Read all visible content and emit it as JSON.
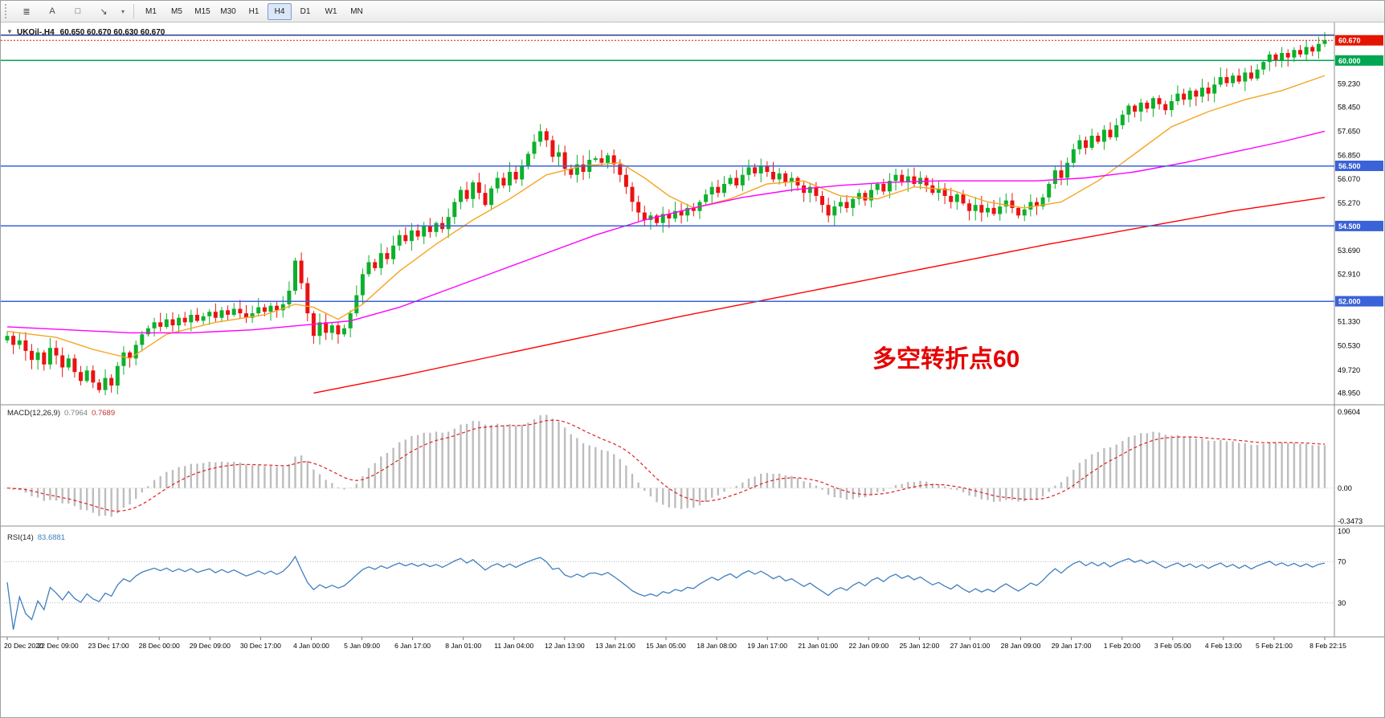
{
  "toolbar": {
    "icons": [
      {
        "name": "charts-list-icon",
        "glyph": "≣"
      },
      {
        "name": "text-label-tool-icon",
        "glyph": "A"
      },
      {
        "name": "shapes-tool-icon",
        "glyph": "□"
      },
      {
        "name": "arrow-tool-icon",
        "glyph": "↘"
      },
      {
        "name": "arrow-tool-caret-icon",
        "glyph": "▾"
      }
    ],
    "timeframes": [
      "M1",
      "M5",
      "M15",
      "M30",
      "H1",
      "H4",
      "D1",
      "W1",
      "MN"
    ],
    "active_timeframe": "H4"
  },
  "chart": {
    "title_symbol": "UKOil-,H4",
    "title_ohlc": "60.650 60.670 60.630 60.670"
  },
  "chart_data": {
    "type": "candlestick",
    "symbol": "UKOil-",
    "timeframe": "H4",
    "ohlc_display": {
      "open": "60.650",
      "high": "60.670",
      "low": "60.630",
      "close": "60.670"
    },
    "x_labels": [
      "20 Dec 2020",
      "22 Dec 09:00",
      "23 Dec 17:00",
      "28 Dec 00:00",
      "29 Dec 09:00",
      "30 Dec 17:00",
      "4 Jan 00:00",
      "5 Jan 09:00",
      "6 Jan 17:00",
      "8 Jan 01:00",
      "11 Jan 04:00",
      "12 Jan 13:00",
      "13 Jan 21:00",
      "15 Jan 05:00",
      "18 Jan 08:00",
      "19 Jan 17:00",
      "21 Jan 01:00",
      "22 Jan 09:00",
      "25 Jan 12:00",
      "27 Jan 01:00",
      "28 Jan 09:00",
      "29 Jan 17:00",
      "1 Feb 20:00",
      "3 Feb 05:00",
      "4 Feb 13:00",
      "5 Feb 21:00",
      "8 Feb 22:15"
    ],
    "closes": [
      50.85,
      50.55,
      50.7,
      50.35,
      50.05,
      50.3,
      49.9,
      50.45,
      50.2,
      49.8,
      50.1,
      49.65,
      49.35,
      49.7,
      49.3,
      49.05,
      49.45,
      49.2,
      49.85,
      50.3,
      50.1,
      50.55,
      50.9,
      51.1,
      51.3,
      51.15,
      51.4,
      51.2,
      51.45,
      51.3,
      51.55,
      51.35,
      51.5,
      51.65,
      51.45,
      51.7,
      51.55,
      51.75,
      51.6,
      51.45,
      51.6,
      51.8,
      51.65,
      51.85,
      51.7,
      51.9,
      52.35,
      53.35,
      52.6,
      51.6,
      50.85,
      51.3,
      50.95,
      51.2,
      50.9,
      51.1,
      51.6,
      52.2,
      52.9,
      53.3,
      53.1,
      53.6,
      53.4,
      53.85,
      54.2,
      54.0,
      54.35,
      54.15,
      54.5,
      54.3,
      54.6,
      54.4,
      54.8,
      55.3,
      55.7,
      55.4,
      55.95,
      55.6,
      55.2,
      55.75,
      56.1,
      55.85,
      56.3,
      56.05,
      56.5,
      56.9,
      57.3,
      57.65,
      57.35,
      56.8,
      56.95,
      56.4,
      56.2,
      56.55,
      56.3,
      56.7,
      56.75,
      56.6,
      56.85,
      56.55,
      56.2,
      55.8,
      55.3,
      54.95,
      54.7,
      54.85,
      54.6,
      54.9,
      54.75,
      55.0,
      54.85,
      55.1,
      55.0,
      55.3,
      55.55,
      55.8,
      55.6,
      55.9,
      56.1,
      55.85,
      56.2,
      56.45,
      56.25,
      56.5,
      56.3,
      56.05,
      56.25,
      55.95,
      56.1,
      55.85,
      55.6,
      55.8,
      55.5,
      55.2,
      54.85,
      55.15,
      55.3,
      55.1,
      55.4,
      55.6,
      55.35,
      55.7,
      55.9,
      55.65,
      56.0,
      56.2,
      55.95,
      56.15,
      55.9,
      56.1,
      55.85,
      55.6,
      55.75,
      55.5,
      55.3,
      55.55,
      55.25,
      55.0,
      55.2,
      54.95,
      55.1,
      54.9,
      55.15,
      55.35,
      55.1,
      54.85,
      55.05,
      55.3,
      55.15,
      55.45,
      55.9,
      56.35,
      56.1,
      56.6,
      57.05,
      57.35,
      57.1,
      57.5,
      57.3,
      57.7,
      57.45,
      57.85,
      58.2,
      58.5,
      58.3,
      58.6,
      58.4,
      58.75,
      58.55,
      58.35,
      58.65,
      58.9,
      58.7,
      59.0,
      58.8,
      59.1,
      58.9,
      59.2,
      59.45,
      59.25,
      59.5,
      59.3,
      59.6,
      59.4,
      59.7,
      59.95,
      60.2,
      60.0,
      60.25,
      60.1,
      60.35,
      60.2,
      60.45,
      60.3,
      60.55,
      60.67
    ],
    "price_axis": {
      "min": 48.72,
      "max": 61.05,
      "labels": [
        "59.230",
        "58.450",
        "57.650",
        "56.850",
        "56.070",
        "55.270",
        "53.690",
        "52.910",
        "51.330",
        "50.530",
        "49.720",
        "48.950"
      ],
      "tags": [
        {
          "value": "60.670",
          "color": "#e51400",
          "type": "current-price"
        },
        {
          "value": "60.000",
          "color": "#00a651",
          "type": "line-label"
        },
        {
          "value": "56.500",
          "color": "#3a62d9",
          "type": "line-label"
        },
        {
          "value": "54.500",
          "color": "#3a62d9",
          "type": "line-label"
        },
        {
          "value": "52.000",
          "color": "#3a62d9",
          "type": "line-label"
        }
      ]
    },
    "horizontal_lines": [
      {
        "price": 60.85,
        "color": "#27408b",
        "width": 1.5
      },
      {
        "price": 60.0,
        "color": "#00a651",
        "width": 1.5
      },
      {
        "price": 56.5,
        "color": "#3a62d9",
        "width": 1.5
      },
      {
        "price": 54.5,
        "color": "#3a62d9",
        "width": 1.5
      },
      {
        "price": 52.0,
        "color": "#3a62d9",
        "width": 1.5
      }
    ],
    "current_price": 60.67,
    "candle_colors": {
      "up": "#0db02b",
      "down": "#ea1212"
    },
    "moving_averages": [
      {
        "name": "ma-fast-orange",
        "color": "#f5a623",
        "points": [
          [
            0,
            51.0
          ],
          [
            8,
            50.8
          ],
          [
            14,
            50.4
          ],
          [
            20,
            50.1
          ],
          [
            26,
            50.9
          ],
          [
            34,
            51.3
          ],
          [
            42,
            51.55
          ],
          [
            47,
            51.9
          ],
          [
            50,
            51.8
          ],
          [
            54,
            51.4
          ],
          [
            58,
            51.9
          ],
          [
            64,
            53.0
          ],
          [
            70,
            53.9
          ],
          [
            76,
            54.7
          ],
          [
            82,
            55.4
          ],
          [
            88,
            56.2
          ],
          [
            94,
            56.5
          ],
          [
            100,
            56.6
          ],
          [
            104,
            56.1
          ],
          [
            108,
            55.5
          ],
          [
            112,
            55.1
          ],
          [
            118,
            55.4
          ],
          [
            124,
            55.9
          ],
          [
            130,
            56.0
          ],
          [
            136,
            55.5
          ],
          [
            142,
            55.4
          ],
          [
            148,
            55.8
          ],
          [
            154,
            55.7
          ],
          [
            160,
            55.3
          ],
          [
            166,
            55.1
          ],
          [
            172,
            55.3
          ],
          [
            178,
            56.0
          ],
          [
            184,
            56.9
          ],
          [
            190,
            57.8
          ],
          [
            196,
            58.3
          ],
          [
            202,
            58.7
          ],
          [
            208,
            59.0
          ],
          [
            215,
            59.5
          ]
        ]
      },
      {
        "name": "ma-mid-magenta",
        "color": "#ff00ff",
        "points": [
          [
            0,
            51.15
          ],
          [
            10,
            51.05
          ],
          [
            20,
            50.95
          ],
          [
            30,
            50.95
          ],
          [
            40,
            51.05
          ],
          [
            48,
            51.2
          ],
          [
            56,
            51.35
          ],
          [
            64,
            51.8
          ],
          [
            72,
            52.4
          ],
          [
            80,
            53.0
          ],
          [
            88,
            53.6
          ],
          [
            96,
            54.2
          ],
          [
            104,
            54.7
          ],
          [
            112,
            55.1
          ],
          [
            120,
            55.45
          ],
          [
            128,
            55.7
          ],
          [
            136,
            55.85
          ],
          [
            144,
            55.95
          ],
          [
            152,
            56.0
          ],
          [
            160,
            56.0
          ],
          [
            168,
            56.0
          ],
          [
            176,
            56.1
          ],
          [
            184,
            56.3
          ],
          [
            192,
            56.6
          ],
          [
            200,
            56.95
          ],
          [
            208,
            57.3
          ],
          [
            215,
            57.65
          ]
        ]
      },
      {
        "name": "ma-slow-red",
        "color": "#ff0000",
        "points": [
          [
            50,
            48.95
          ],
          [
            65,
            49.55
          ],
          [
            80,
            50.2
          ],
          [
            95,
            50.85
          ],
          [
            110,
            51.5
          ],
          [
            125,
            52.1
          ],
          [
            140,
            52.7
          ],
          [
            155,
            53.3
          ],
          [
            170,
            53.9
          ],
          [
            185,
            54.45
          ],
          [
            200,
            55.0
          ],
          [
            215,
            55.45
          ]
        ]
      }
    ],
    "indicators": {
      "macd": {
        "label": "MACD(12,26,9)",
        "values": [
          "0.7964",
          "0.7689"
        ],
        "params": [
          12,
          26,
          9
        ],
        "axis_labels": [
          "0.9604",
          "0.00",
          "-0.3473"
        ],
        "histogram_color": "#bdbdbd",
        "signal_color": "#e02020"
      },
      "rsi": {
        "label": "RSI(14)",
        "value": "83.6881",
        "period": 14,
        "axis_labels": [
          "100",
          "70",
          "30"
        ],
        "levels": [
          70,
          30
        ],
        "line_color": "#3f7fbf"
      }
    },
    "annotation": {
      "text": "多空转折点60",
      "color": "#e60000"
    }
  }
}
